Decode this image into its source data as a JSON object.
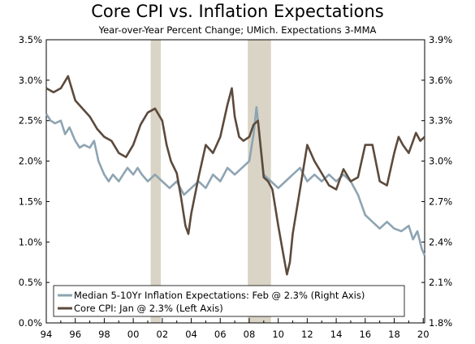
{
  "chart_data": {
    "type": "line",
    "title": "Core CPI vs. Inflation Expectations",
    "subtitle": "Year-over-Year Percent Change; UMich. Expectations 3-MMA",
    "x_ticks": [
      "94",
      "96",
      "98",
      "00",
      "02",
      "04",
      "06",
      "08",
      "10",
      "12",
      "14",
      "16",
      "18",
      "20"
    ],
    "xlim": [
      1994,
      2020.1
    ],
    "left_axis": {
      "ticks": [
        "0.0%",
        "0.5%",
        "1.0%",
        "1.5%",
        "2.0%",
        "2.5%",
        "3.0%",
        "3.5%"
      ],
      "ylim": [
        0,
        3.5
      ]
    },
    "right_axis": {
      "ticks": [
        "1.8%",
        "2.1%",
        "2.4%",
        "2.7%",
        "3.0%",
        "3.3%",
        "3.6%",
        "3.9%"
      ],
      "ylim": [
        1.8,
        3.9
      ]
    },
    "recessions": [
      [
        2001.2,
        2001.9
      ],
      [
        2007.9,
        2009.5
      ]
    ],
    "colors": {
      "cpi": "#5c4a3c",
      "expectations": "#8ea4b2",
      "recession": "#d9d4c5"
    },
    "series": [
      {
        "name": "Median 5-10Yr Inflation Expectations: Feb @ 2.3% (Right Axis)",
        "axis": "right",
        "points": [
          [
            1994.0,
            3.35
          ],
          [
            1994.3,
            3.3
          ],
          [
            1994.6,
            3.28
          ],
          [
            1995.0,
            3.3
          ],
          [
            1995.3,
            3.2
          ],
          [
            1995.6,
            3.25
          ],
          [
            1996.0,
            3.15
          ],
          [
            1996.3,
            3.1
          ],
          [
            1996.6,
            3.12
          ],
          [
            1997.0,
            3.1
          ],
          [
            1997.3,
            3.15
          ],
          [
            1997.6,
            3.0
          ],
          [
            1998.0,
            2.9
          ],
          [
            1998.3,
            2.85
          ],
          [
            1998.6,
            2.9
          ],
          [
            1999.0,
            2.85
          ],
          [
            1999.3,
            2.9
          ],
          [
            1999.6,
            2.95
          ],
          [
            2000.0,
            2.9
          ],
          [
            2000.3,
            2.95
          ],
          [
            2000.6,
            2.9
          ],
          [
            2001.0,
            2.85
          ],
          [
            2001.5,
            2.9
          ],
          [
            2002.0,
            2.85
          ],
          [
            2002.5,
            2.8
          ],
          [
            2003.0,
            2.85
          ],
          [
            2003.5,
            2.75
          ],
          [
            2004.0,
            2.8
          ],
          [
            2004.5,
            2.85
          ],
          [
            2005.0,
            2.8
          ],
          [
            2005.5,
            2.9
          ],
          [
            2006.0,
            2.85
          ],
          [
            2006.5,
            2.95
          ],
          [
            2007.0,
            2.9
          ],
          [
            2007.5,
            2.95
          ],
          [
            2008.0,
            3.0
          ],
          [
            2008.3,
            3.2
          ],
          [
            2008.5,
            3.4
          ],
          [
            2008.8,
            3.1
          ],
          [
            2009.0,
            2.9
          ],
          [
            2009.5,
            2.85
          ],
          [
            2010.0,
            2.8
          ],
          [
            2010.5,
            2.85
          ],
          [
            2011.0,
            2.9
          ],
          [
            2011.5,
            2.95
          ],
          [
            2012.0,
            2.85
          ],
          [
            2012.5,
            2.9
          ],
          [
            2013.0,
            2.85
          ],
          [
            2013.5,
            2.9
          ],
          [
            2014.0,
            2.85
          ],
          [
            2014.5,
            2.9
          ],
          [
            2015.0,
            2.85
          ],
          [
            2015.5,
            2.75
          ],
          [
            2016.0,
            2.6
          ],
          [
            2016.5,
            2.55
          ],
          [
            2017.0,
            2.5
          ],
          [
            2017.5,
            2.55
          ],
          [
            2018.0,
            2.5
          ],
          [
            2018.5,
            2.48
          ],
          [
            2019.0,
            2.52
          ],
          [
            2019.3,
            2.42
          ],
          [
            2019.6,
            2.48
          ],
          [
            2019.9,
            2.35
          ],
          [
            2020.1,
            2.3
          ]
        ]
      },
      {
        "name": "Core CPI: Jan @ 2.3% (Left Axis)",
        "axis": "left",
        "points": [
          [
            1994.0,
            2.9
          ],
          [
            1994.5,
            2.85
          ],
          [
            1995.0,
            2.9
          ],
          [
            1995.5,
            3.05
          ],
          [
            1996.0,
            2.75
          ],
          [
            1996.5,
            2.65
          ],
          [
            1997.0,
            2.55
          ],
          [
            1997.5,
            2.4
          ],
          [
            1998.0,
            2.3
          ],
          [
            1998.5,
            2.25
          ],
          [
            1999.0,
            2.1
          ],
          [
            1999.5,
            2.05
          ],
          [
            2000.0,
            2.2
          ],
          [
            2000.5,
            2.45
          ],
          [
            2001.0,
            2.6
          ],
          [
            2001.5,
            2.65
          ],
          [
            2002.0,
            2.5
          ],
          [
            2002.3,
            2.2
          ],
          [
            2002.6,
            2.0
          ],
          [
            2003.0,
            1.85
          ],
          [
            2003.3,
            1.55
          ],
          [
            2003.6,
            1.2
          ],
          [
            2003.8,
            1.1
          ],
          [
            2004.0,
            1.35
          ],
          [
            2004.5,
            1.8
          ],
          [
            2005.0,
            2.2
          ],
          [
            2005.5,
            2.1
          ],
          [
            2006.0,
            2.3
          ],
          [
            2006.5,
            2.7
          ],
          [
            2006.8,
            2.9
          ],
          [
            2007.0,
            2.55
          ],
          [
            2007.3,
            2.3
          ],
          [
            2007.6,
            2.25
          ],
          [
            2008.0,
            2.3
          ],
          [
            2008.3,
            2.45
          ],
          [
            2008.6,
            2.5
          ],
          [
            2009.0,
            1.8
          ],
          [
            2009.3,
            1.75
          ],
          [
            2009.6,
            1.65
          ],
          [
            2010.0,
            1.2
          ],
          [
            2010.3,
            0.9
          ],
          [
            2010.6,
            0.6
          ],
          [
            2010.8,
            0.75
          ],
          [
            2011.0,
            1.1
          ],
          [
            2011.5,
            1.65
          ],
          [
            2012.0,
            2.2
          ],
          [
            2012.5,
            2.0
          ],
          [
            2013.0,
            1.85
          ],
          [
            2013.5,
            1.7
          ],
          [
            2014.0,
            1.65
          ],
          [
            2014.5,
            1.9
          ],
          [
            2015.0,
            1.75
          ],
          [
            2015.5,
            1.8
          ],
          [
            2016.0,
            2.2
          ],
          [
            2016.5,
            2.2
          ],
          [
            2017.0,
            1.75
          ],
          [
            2017.5,
            1.7
          ],
          [
            2018.0,
            2.1
          ],
          [
            2018.3,
            2.3
          ],
          [
            2018.6,
            2.2
          ],
          [
            2019.0,
            2.1
          ],
          [
            2019.5,
            2.35
          ],
          [
            2019.8,
            2.25
          ],
          [
            2020.1,
            2.3
          ]
        ]
      }
    ]
  },
  "legend": {
    "expectations_label": "Median 5-10Yr Inflation Expectations: Feb @ 2.3% (Right Axis)",
    "cpi_label": "Core CPI: Jan @ 2.3% (Left Axis)"
  }
}
